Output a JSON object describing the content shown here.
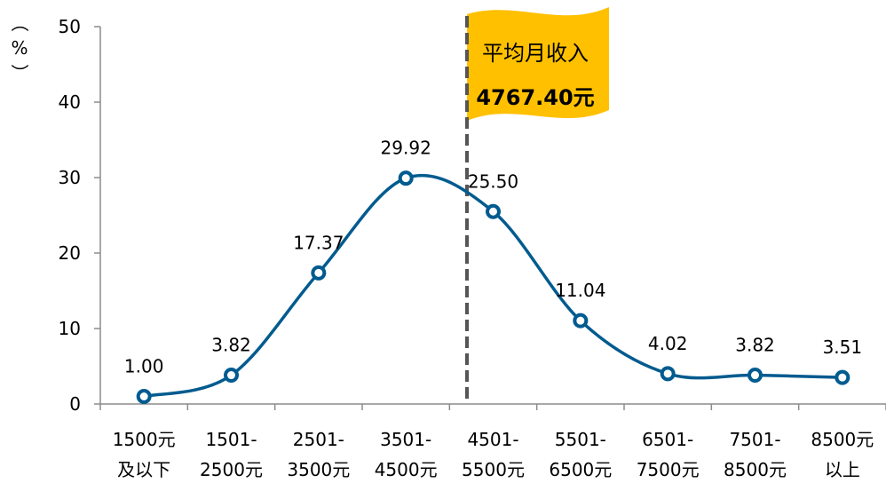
{
  "chart_data": {
    "type": "line",
    "title": "",
    "xlabel": "",
    "ylabel": "（%）",
    "ylim": [
      0,
      50
    ],
    "yticks": [
      0,
      10,
      20,
      30,
      40,
      50
    ],
    "grid": false,
    "categories": [
      [
        "1500元",
        "及以下"
      ],
      [
        "1501-",
        "2500元"
      ],
      [
        "2501-",
        "3500元"
      ],
      [
        "3501-",
        "4500元"
      ],
      [
        "4501-",
        "5500元"
      ],
      [
        "5501-",
        "6500元"
      ],
      [
        "6501-",
        "7500元"
      ],
      [
        "7501-",
        "8500元"
      ],
      [
        "8500元",
        "以上"
      ]
    ],
    "series": [
      {
        "values": [
          1.0,
          3.82,
          17.37,
          29.92,
          25.5,
          11.04,
          4.02,
          3.82,
          3.51
        ],
        "labels": [
          "1.00",
          "3.82",
          "17.37",
          "29.92",
          "25.50",
          "11.04",
          "4.02",
          "3.82",
          "3.51"
        ],
        "color": "#005b8f"
      }
    ],
    "annotation": {
      "line1": "平均月收入",
      "line2": "4767.40元",
      "position_category": 4.2,
      "flag_color": "#ffc000",
      "line_color": "#555555"
    }
  }
}
